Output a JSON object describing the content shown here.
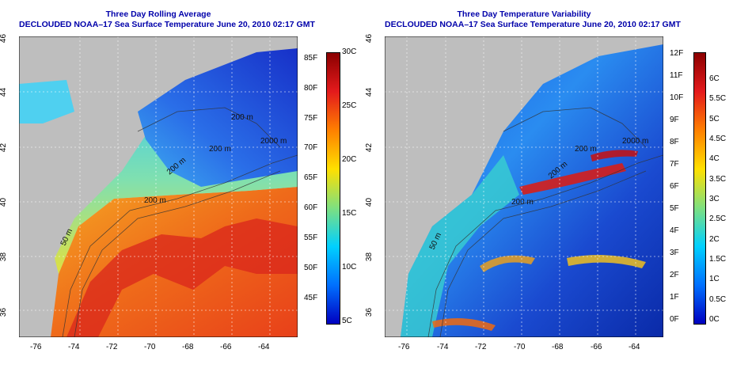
{
  "panels": [
    {
      "title": "Three Day Rolling Average",
      "subtitle": "DECLOUDED NOAA–17 Sea Surface Temperature June 20, 2010 02:17 GMT",
      "x_ticks": [
        "-76",
        "-74",
        "-72",
        "-70",
        "-68",
        "-66",
        "-64"
      ],
      "y_ticks": [
        "36",
        "38",
        "40",
        "42",
        "44",
        "46"
      ],
      "contour_labels": [
        "50 m",
        "200 m",
        "200 m",
        "200 m",
        "200 m",
        "2000 m"
      ],
      "colorbar": {
        "right_labels": [
          "30C",
          "25C",
          "20C",
          "15C",
          "10C",
          "5C"
        ],
        "left_labels": [
          "85F",
          "80F",
          "75F",
          "70F",
          "65F",
          "60F",
          "55F",
          "50F",
          "45F"
        ]
      }
    },
    {
      "title": "Three Day Temperature Variability",
      "subtitle": "DECLOUDED NOAA–17 Sea Surface Temperature June 20, 2010 02:17 GMT",
      "x_ticks": [
        "-76",
        "-74",
        "-72",
        "-70",
        "-68",
        "-66",
        "-64"
      ],
      "y_ticks": [
        "36",
        "38",
        "40",
        "42",
        "44",
        "46"
      ],
      "contour_labels": [
        "50 m",
        "200 m",
        "200 m",
        "200 m",
        "2000 m"
      ],
      "colorbar": {
        "right_labels": [
          "6C",
          "5.5C",
          "5C",
          "4.5C",
          "4C",
          "3.5C",
          "3C",
          "2.5C",
          "2C",
          "1.5C",
          "1C",
          "0.5C",
          "0C"
        ],
        "left_labels": [
          "12F",
          "11F",
          "10F",
          "9F",
          "8F",
          "7F",
          "6F",
          "5F",
          "4F",
          "3F",
          "2F",
          "1F",
          "0F"
        ]
      }
    }
  ],
  "colors": {
    "title": "#0000aa",
    "land": "#bebebe",
    "cold": "#1a3fd6",
    "warm": "#e8501a"
  }
}
